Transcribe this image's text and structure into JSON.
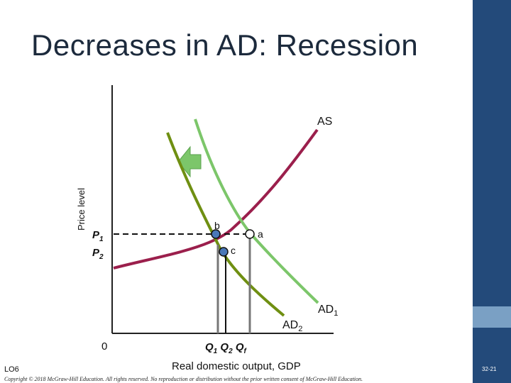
{
  "slide": {
    "title": "Decreases in AD: Recession",
    "footer_lo": "LO6",
    "copyright": "Copyright © 2018 McGraw-Hill Education. All rights reserved. No reproduction or distribution without the prior written consent of McGraw-Hill Education.",
    "slide_number": "32-21"
  },
  "diagram": {
    "y_axis_label": "Price level",
    "x_axis_label": "Real domestic output, GDP",
    "origin_label": "0",
    "curves": {
      "as": "AS",
      "ad1": "AD",
      "ad1_sub": "1",
      "ad2": "AD",
      "ad2_sub": "2"
    },
    "prices": {
      "p1": "P",
      "p1_sub": "1",
      "p2": "P",
      "p2_sub": "2"
    },
    "quantities": {
      "q1": "Q",
      "q1_sub": "1",
      "q2": "Q",
      "q2_sub": "2",
      "qf": "Q",
      "qf_sub": "f"
    },
    "points": {
      "a": "a",
      "b": "b",
      "c": "c"
    },
    "colors": {
      "as_curve": "#9b1f4c",
      "ad1_curve": "#7cc66a",
      "ad2_curve": "#6f8f12",
      "arrow": "#7cc66a",
      "point_fill": "#4a78b8",
      "sidebar": "#234a7a"
    }
  }
}
